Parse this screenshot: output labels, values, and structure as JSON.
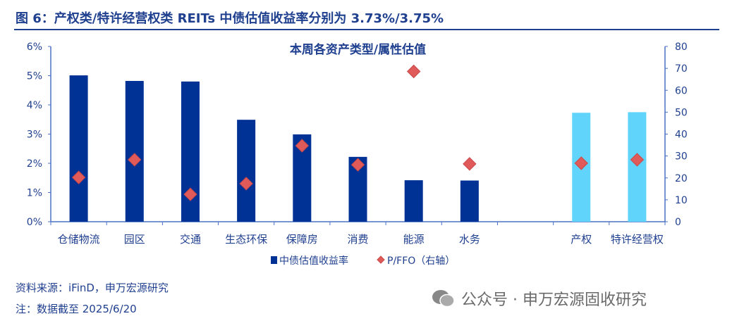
{
  "figure_title": "图 6：产权类/特许经营权类 REITs 中债估值收益率分别为 3.73%/3.75%",
  "source": "资料来源：iFinD，申万宏源研究",
  "note": "注：数据截至 2025/6/20",
  "watermark": "公众号 · 申万宏源固收研究",
  "chart_data": {
    "type": "bar",
    "title": "本周各资产类型/属性估值",
    "categories": [
      "仓储物流",
      "园区",
      "交通",
      "生态环保",
      "保障房",
      "消费",
      "能源",
      "水务",
      "",
      "产权",
      "特许经营权"
    ],
    "series": [
      {
        "name": "中债估值收益率",
        "type": "bar",
        "axis": "left",
        "unit": "%",
        "values": [
          5.01,
          4.82,
          4.8,
          3.49,
          2.99,
          2.22,
          1.42,
          1.41,
          null,
          3.73,
          3.75
        ],
        "colors": [
          "#003194",
          "#003194",
          "#003194",
          "#003194",
          "#003194",
          "#003194",
          "#003194",
          "#003194",
          null,
          "#61d4fc",
          "#61d4fc"
        ]
      },
      {
        "name": "P/FFO（右轴）",
        "type": "scatter",
        "axis": "right",
        "marker": "diamond",
        "color": "#e05a5a",
        "values": [
          20.2,
          28.3,
          12.5,
          17.4,
          34.7,
          26.0,
          68.6,
          26.4,
          null,
          26.7,
          28.3
        ]
      }
    ],
    "y_left": {
      "ylim": [
        0,
        6
      ],
      "ticks": [
        "0%",
        "1%",
        "2%",
        "3%",
        "4%",
        "5%",
        "6%"
      ]
    },
    "y_right": {
      "ylim": [
        0,
        80
      ],
      "ticks": [
        "0",
        "10",
        "20",
        "30",
        "40",
        "50",
        "60",
        "70",
        "80"
      ]
    },
    "grid": false,
    "legend": "bottom"
  }
}
